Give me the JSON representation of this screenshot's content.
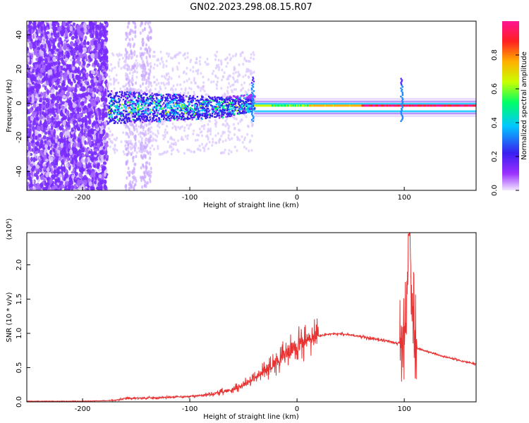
{
  "figure_title": "GN02.2023.298.08.15.R07",
  "colors": {
    "snr_line": "#e83232",
    "axis": "#000000",
    "background": "#ffffff"
  },
  "chart_data": [
    {
      "type": "heatmap",
      "xlabel": "Height of straight line (km)",
      "ylabel": "Frequency (Hz)",
      "xlim": [
        -252,
        167
      ],
      "ylim": [
        -51,
        48
      ],
      "xticks": [
        -200,
        -100,
        0,
        100
      ],
      "yticks": [
        -40,
        -20,
        0,
        20,
        40
      ],
      "grid": false,
      "colorbar": {
        "label": "Normalized spectral amplitude",
        "range": [
          0,
          1
        ],
        "ticks": [
          "0.0",
          "0.2",
          "0.4",
          "0.6",
          "0.8"
        ],
        "colormap": [
          "#9b30ff",
          "#3a1ef0",
          "#00c8ff",
          "#00ff66",
          "#c8ff00",
          "#ffb000",
          "#ff2020",
          "#ff1493"
        ]
      },
      "features": {
        "noise_region_x": [
          -252,
          -177
        ],
        "scatter_region_x": [
          -177,
          -40
        ],
        "main_band_x": [
          -40,
          167
        ],
        "main_band_frequency_hz": -2,
        "spike_x": [
          -42,
          97
        ],
        "spike_max_hz": [
          16,
          15
        ]
      }
    },
    {
      "type": "line",
      "xlabel": "Height of straight line (km)",
      "ylabel": "SNR (10 * v/v)",
      "yunit_label": "(x10⁴)",
      "xlim": [
        -252,
        167
      ],
      "ylim": [
        0,
        2.47
      ],
      "xticks": [
        -200,
        -100,
        0,
        100
      ],
      "yticks": [
        0.0,
        0.5,
        1.0,
        1.5,
        2.0
      ],
      "ytick_labels": [
        "0.0",
        "0.5",
        "1.0",
        "1.5",
        "2.0"
      ],
      "grid": false,
      "series": [
        {
          "x": [
            -252,
            -200,
            -170,
            -160,
            -130,
            -100,
            -80,
            -60,
            -50,
            -40,
            -30,
            -20,
            -10,
            0,
            10,
            20,
            30,
            40,
            50,
            60,
            70,
            80,
            90,
            96,
            100,
            103,
            105,
            107,
            110,
            115,
            130,
            150,
            167
          ],
          "values": [
            0.01,
            0.01,
            0.02,
            0.05,
            0.06,
            0.08,
            0.11,
            0.18,
            0.25,
            0.34,
            0.45,
            0.58,
            0.71,
            0.82,
            0.9,
            0.96,
            0.99,
            0.99,
            0.98,
            0.95,
            0.92,
            0.9,
            0.87,
            0.85,
            0.8,
            1.9,
            2.4,
            1.3,
            0.78,
            0.77,
            0.69,
            0.61,
            0.55
          ]
        }
      ]
    }
  ]
}
